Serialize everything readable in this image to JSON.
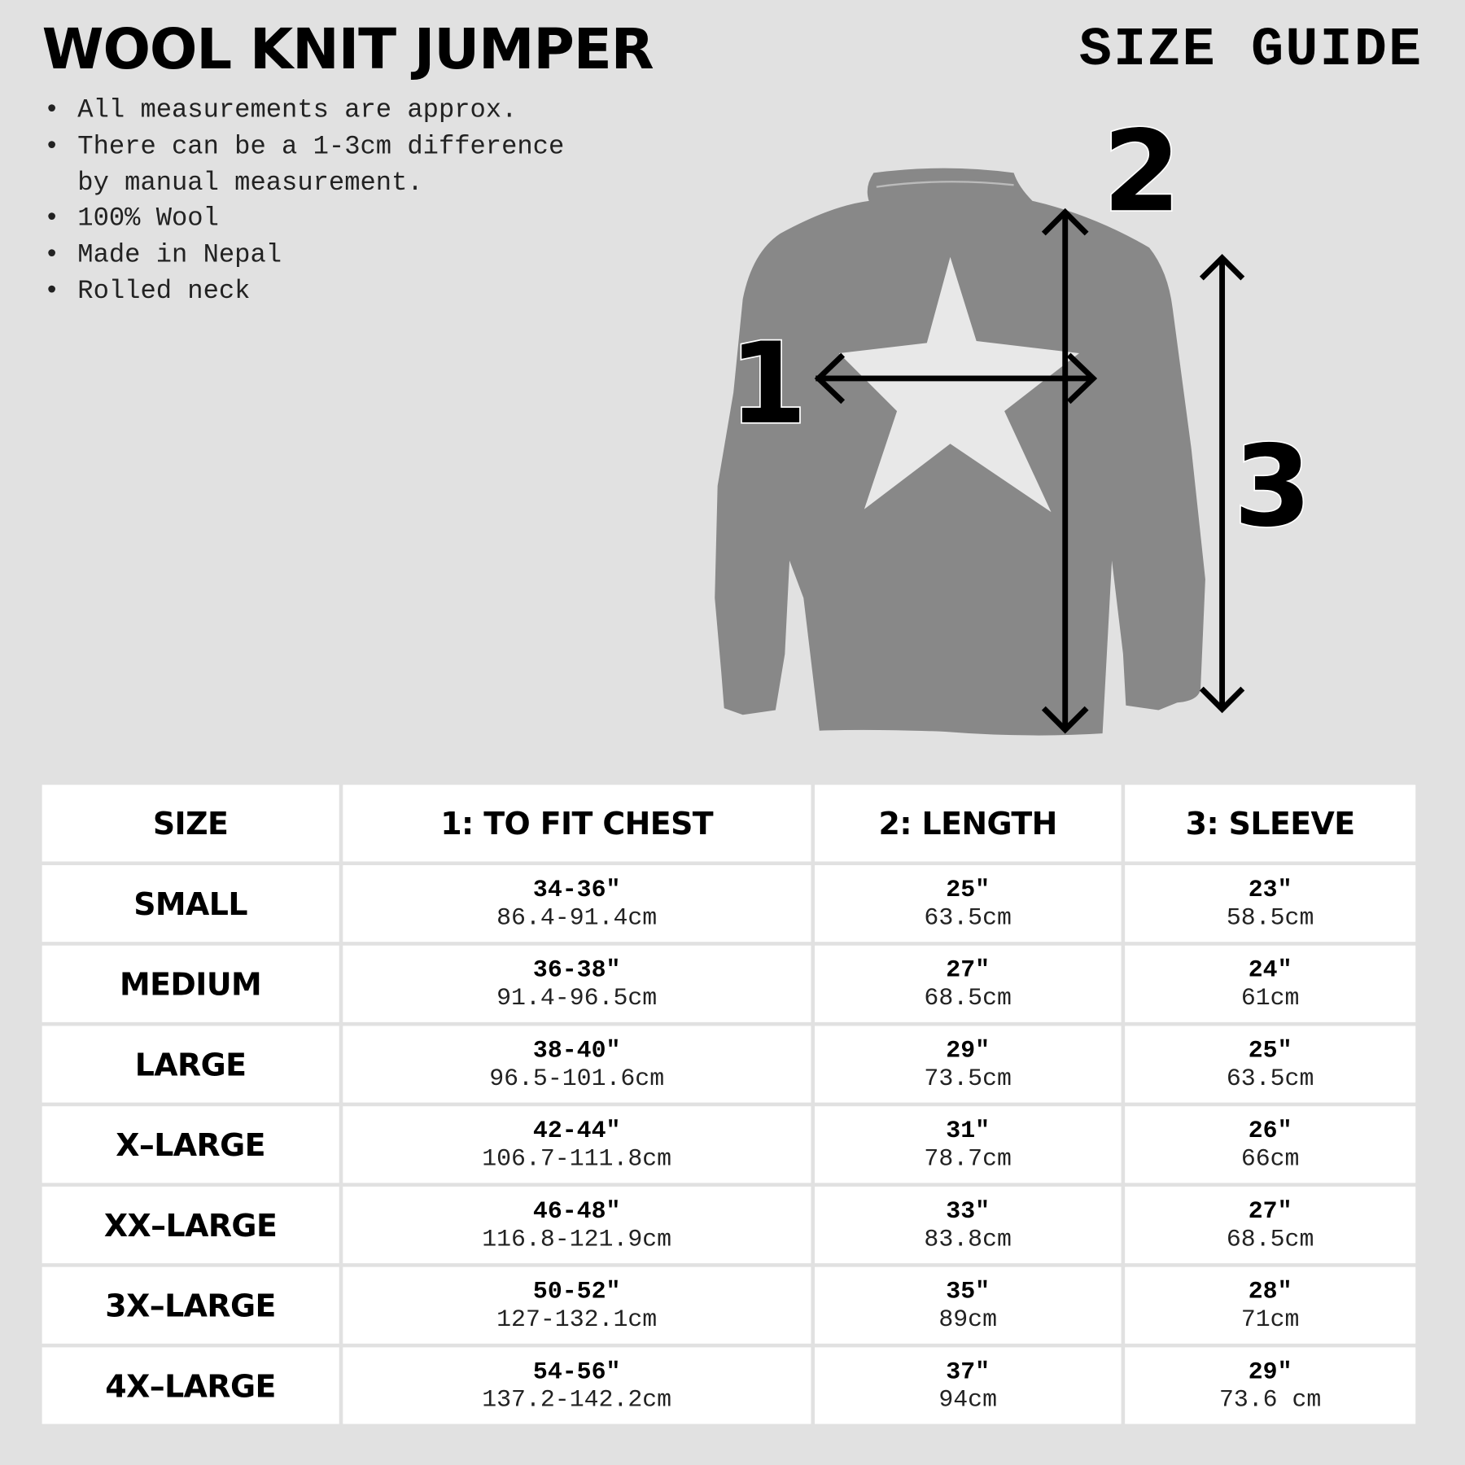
{
  "header": {
    "title": "WOOL KNIT JUMPER",
    "guide_label": "SIZE GUIDE"
  },
  "notes": [
    "All measurements are approx.",
    "There can be a 1-3cm difference\nby manual measurement.",
    "100% Wool",
    "Made in Nepal",
    "Rolled neck"
  ],
  "diagram": {
    "label_1": "1",
    "label_2": "2",
    "label_3": "3",
    "sweater_color": "#888888",
    "star_color": "#e8e8e8"
  },
  "table": {
    "headers": [
      "SIZE",
      "1: TO FIT CHEST",
      "2: LENGTH",
      "3: SLEEVE"
    ],
    "rows": [
      {
        "size": "SMALL",
        "chest_in": "34-36″",
        "chest_cm": "86.4-91.4cm",
        "length_in": "25″",
        "length_cm": "63.5cm",
        "sleeve_in": "23″",
        "sleeve_cm": "58.5cm"
      },
      {
        "size": "MEDIUM",
        "chest_in": "36-38″",
        "chest_cm": "91.4-96.5cm",
        "length_in": "27″",
        "length_cm": "68.5cm",
        "sleeve_in": "24″",
        "sleeve_cm": "61cm"
      },
      {
        "size": "LARGE",
        "chest_in": "38-40″",
        "chest_cm": "96.5-101.6cm",
        "length_in": "29″",
        "length_cm": "73.5cm",
        "sleeve_in": "25″",
        "sleeve_cm": "63.5cm"
      },
      {
        "size": "X–LARGE",
        "chest_in": "42-44″",
        "chest_cm": "106.7-111.8cm",
        "length_in": "31″",
        "length_cm": "78.7cm",
        "sleeve_in": "26″",
        "sleeve_cm": "66cm"
      },
      {
        "size": "XX–LARGE",
        "chest_in": "46-48″",
        "chest_cm": "116.8-121.9cm",
        "length_in": "33″",
        "length_cm": "83.8cm",
        "sleeve_in": "27″",
        "sleeve_cm": "68.5cm"
      },
      {
        "size": "3X–LARGE",
        "chest_in": "50-52″",
        "chest_cm": "127-132.1cm",
        "length_in": "35″",
        "length_cm": "89cm",
        "sleeve_in": "28″",
        "sleeve_cm": "71cm"
      },
      {
        "size": "4X–LARGE",
        "chest_in": "54-56″",
        "chest_cm": "137.2-142.2cm",
        "length_in": "37″",
        "length_cm": "94cm",
        "sleeve_in": "29″",
        "sleeve_cm": "73.6 cm"
      }
    ]
  }
}
